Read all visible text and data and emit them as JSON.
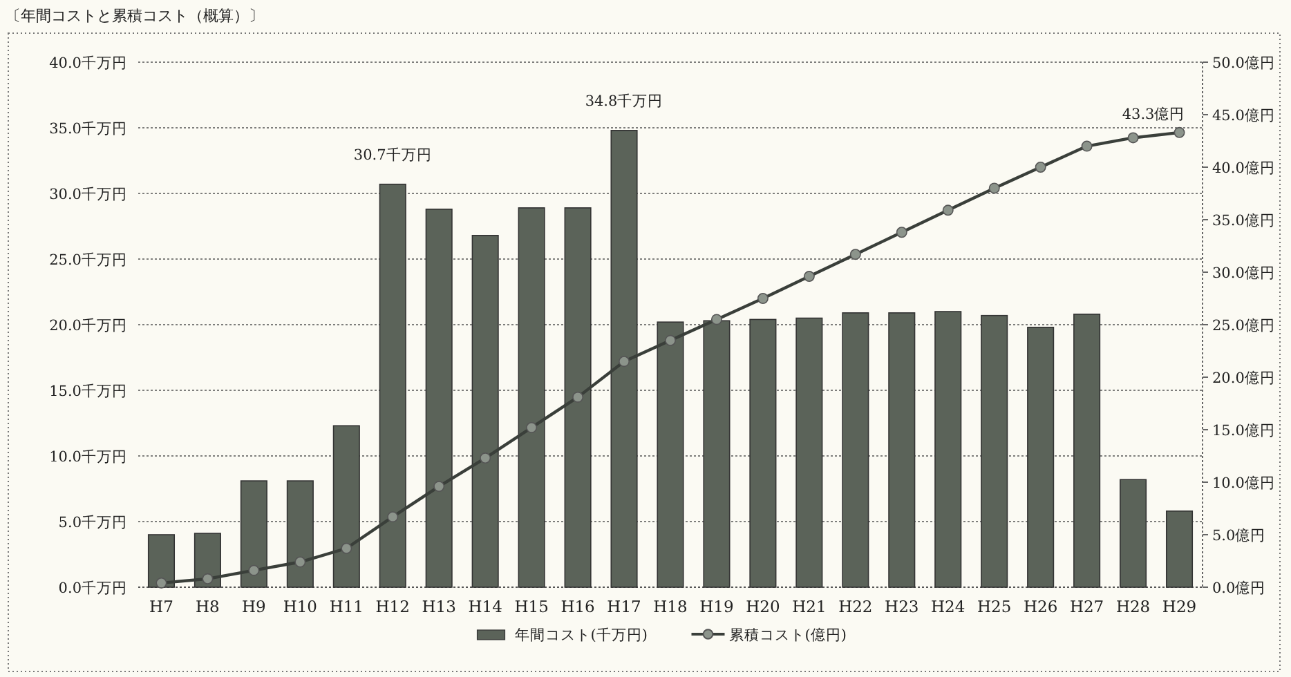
{
  "chart_data": {
    "type": "bar",
    "title": "〔年間コストと累積コスト（概算）〕",
    "categories": [
      "H7",
      "H8",
      "H9",
      "H10",
      "H11",
      "H12",
      "H13",
      "H14",
      "H15",
      "H16",
      "H17",
      "H18",
      "H19",
      "H20",
      "H21",
      "H22",
      "H23",
      "H24",
      "H25",
      "H26",
      "H27",
      "H28",
      "H29"
    ],
    "series": [
      {
        "name": "年間コスト(千万円)",
        "color": "#5b6359",
        "values": [
          4.0,
          4.1,
          8.1,
          8.1,
          12.3,
          30.7,
          28.8,
          26.8,
          28.9,
          28.9,
          34.8,
          20.2,
          20.3,
          20.4,
          20.5,
          20.9,
          20.9,
          21.0,
          20.7,
          19.8,
          20.8,
          8.2,
          5.8
        ],
        "value_labels": [
          null,
          null,
          null,
          null,
          null,
          "30.7千万円",
          null,
          null,
          null,
          null,
          "34.8千万円",
          null,
          null,
          null,
          null,
          null,
          null,
          null,
          null,
          null,
          null,
          null,
          null
        ]
      },
      {
        "name": "累積コスト(億円)",
        "type": "line",
        "axis": "y2",
        "color": "#3a3f3a",
        "values": [
          0.4,
          0.8,
          1.6,
          2.4,
          3.7,
          6.7,
          9.6,
          12.3,
          15.2,
          18.1,
          21.5,
          23.5,
          25.5,
          27.5,
          29.6,
          31.7,
          33.8,
          35.9,
          38.0,
          40.0,
          42.0,
          42.8,
          43.3
        ],
        "value_labels": [
          null,
          null,
          null,
          null,
          null,
          null,
          null,
          null,
          null,
          null,
          null,
          null,
          null,
          null,
          null,
          null,
          null,
          null,
          null,
          null,
          null,
          null,
          "43.3億円"
        ]
      }
    ],
    "ylim": [
      0,
      40
    ],
    "yticks": [
      {
        "value": 0,
        "label": "0.0千万円"
      },
      {
        "value": 5,
        "label": "5.0千万円"
      },
      {
        "value": 10,
        "label": "10.0千万円"
      },
      {
        "value": 15,
        "label": "15.0千万円"
      },
      {
        "value": 20,
        "label": "20.0千万円"
      },
      {
        "value": 25,
        "label": "25.0千万円"
      },
      {
        "value": 30,
        "label": "30.0千万円"
      },
      {
        "value": 35,
        "label": "35.0千万円"
      },
      {
        "value": 40,
        "label": "40.0千万円"
      }
    ],
    "y2lim": [
      0,
      50
    ],
    "y2ticks": [
      {
        "value": 0,
        "label": "0.0億円"
      },
      {
        "value": 5,
        "label": "5.0億円"
      },
      {
        "value": 10,
        "label": "10.0億円"
      },
      {
        "value": 15,
        "label": "15.0億円"
      },
      {
        "value": 20,
        "label": "20.0億円"
      },
      {
        "value": 25,
        "label": "25.0億円"
      },
      {
        "value": 30,
        "label": "30.0億円"
      },
      {
        "value": 35,
        "label": "35.0億円"
      },
      {
        "value": 40,
        "label": "40.0億円"
      },
      {
        "value": 45,
        "label": "45.0億円"
      },
      {
        "value": 50,
        "label": "50.0億円"
      }
    ],
    "grid": "y",
    "legend": "bottom",
    "marker": "circle"
  }
}
